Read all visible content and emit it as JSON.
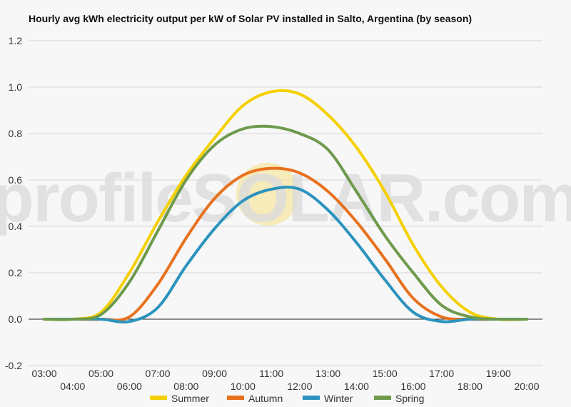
{
  "chart_data": {
    "type": "line",
    "title": "Hourly avg kWh electricity output per kW of Solar PV installed in Salto, Argentina (by season)",
    "xlabel": "",
    "ylabel": "",
    "ylim": [
      -0.2,
      1.2
    ],
    "yticks": [
      "1.2",
      "1.0",
      "0.8",
      "0.6",
      "0.4",
      "0.2",
      "0.0",
      "-0.2"
    ],
    "ytick_values": [
      1.2,
      1.0,
      0.8,
      0.6,
      0.4,
      0.2,
      0.0,
      -0.2
    ],
    "x": [
      "03:00",
      "04:00",
      "05:00",
      "06:00",
      "07:00",
      "08:00",
      "09:00",
      "10:00",
      "11:00",
      "12:00",
      "13:00",
      "14:00",
      "15:00",
      "16:00",
      "17:00",
      "18:00",
      "19:00",
      "20:00"
    ],
    "grid": true,
    "legend_position": "bottom",
    "watermark": "profileSOLAR.com",
    "series": [
      {
        "name": "Summer",
        "color": "#f5d000",
        "values": [
          0.0,
          0.0,
          0.03,
          0.2,
          0.42,
          0.62,
          0.78,
          0.92,
          0.98,
          0.97,
          0.88,
          0.74,
          0.55,
          0.32,
          0.14,
          0.03,
          0.0,
          0.0
        ]
      },
      {
        "name": "Autumn",
        "color": "#e8711e",
        "values": [
          0.0,
          0.0,
          0.0,
          0.01,
          0.15,
          0.35,
          0.52,
          0.62,
          0.65,
          0.63,
          0.55,
          0.42,
          0.26,
          0.09,
          0.01,
          0.0,
          0.0,
          0.0
        ]
      },
      {
        "name": "Winter",
        "color": "#2b93bd",
        "values": [
          0.0,
          0.0,
          0.0,
          -0.01,
          0.05,
          0.23,
          0.39,
          0.51,
          0.56,
          0.56,
          0.47,
          0.33,
          0.17,
          0.03,
          -0.01,
          0.0,
          0.0,
          0.0
        ]
      },
      {
        "name": "Spring",
        "color": "#6d9a4c",
        "values": [
          0.0,
          0.0,
          0.02,
          0.16,
          0.38,
          0.6,
          0.75,
          0.82,
          0.83,
          0.8,
          0.73,
          0.55,
          0.36,
          0.2,
          0.06,
          0.01,
          0.0,
          0.0
        ]
      }
    ]
  }
}
